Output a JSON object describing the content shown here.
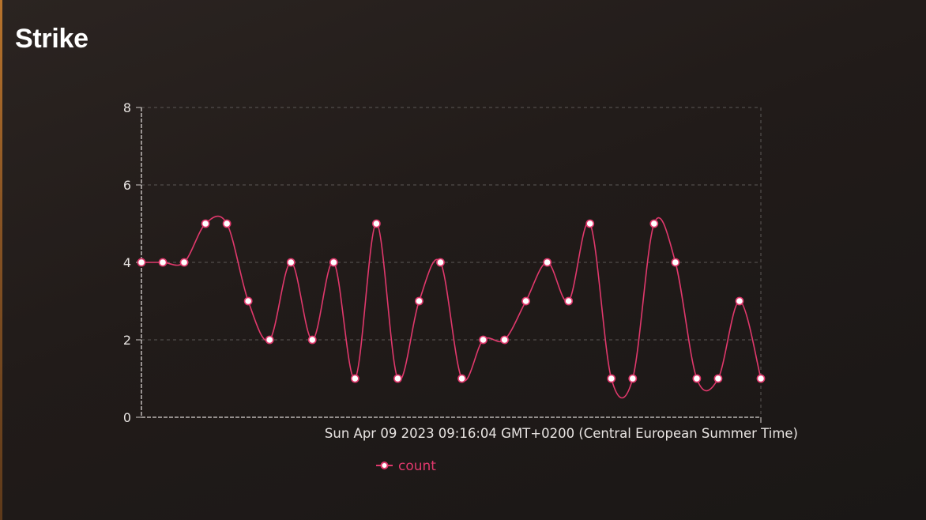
{
  "panel": {
    "title": "Strike"
  },
  "chart_data": {
    "type": "line",
    "x_tick_labels": [
      "Sun Apr 09 2023 09:16:04 GMT+0200 (Central European Summer Time)"
    ],
    "y_ticks": [
      0,
      2,
      4,
      6,
      8
    ],
    "ylim": [
      0,
      8
    ],
    "grid": true,
    "legend_position": "bottom",
    "series": [
      {
        "name": "count",
        "color": "#e0386c",
        "values": [
          4,
          4,
          4,
          5,
          5,
          3,
          2,
          4,
          2,
          4,
          1,
          5,
          1,
          3,
          4,
          1,
          2,
          2,
          3,
          4,
          3,
          5,
          1,
          1,
          5,
          4,
          1,
          1,
          3,
          1
        ]
      }
    ]
  }
}
